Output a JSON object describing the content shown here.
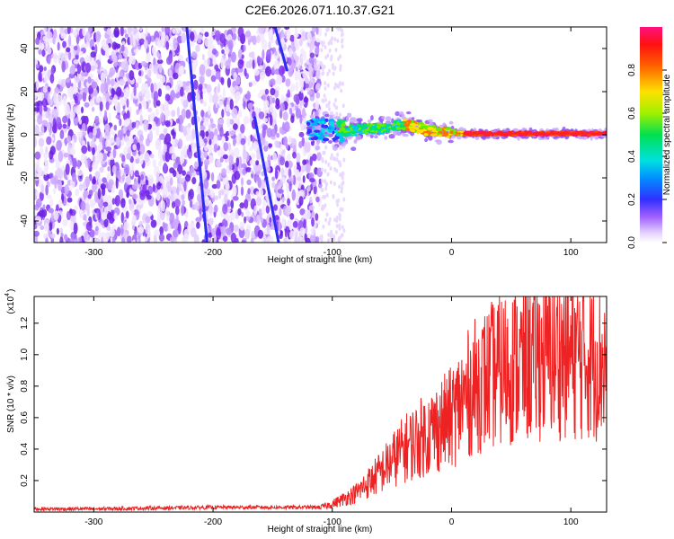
{
  "title": "C2E6.2026.071.10.37.G21",
  "chart_data": [
    {
      "type": "heatmap",
      "xlabel": "Height of straight line (km)",
      "ylabel": "Frequency (Hz)",
      "xlim": [
        -350,
        130
      ],
      "ylim": [
        -50,
        50
      ],
      "xticks": [
        -300,
        -200,
        -100,
        0,
        100
      ],
      "yticks": [
        -40,
        -20,
        0,
        20,
        40
      ],
      "noise_region_x": [
        -350,
        -110
      ],
      "signal_band": {
        "x": [
          -120,
          -100,
          -80,
          -60,
          -40,
          -20,
          0,
          20,
          60,
          100,
          130
        ],
        "frequency": [
          3,
          2,
          2,
          3,
          5,
          2,
          1,
          0.5,
          0.5,
          0.5,
          0.5
        ]
      },
      "streaks": [
        {
          "x": [
            -222,
            -205
          ],
          "frequency": [
            50,
            -50
          ]
        },
        {
          "x": [
            -165,
            -145
          ],
          "frequency": [
            8,
            -50
          ]
        },
        {
          "x": [
            -148,
            -138
          ],
          "frequency": [
            50,
            30
          ]
        }
      ],
      "colorbar": {
        "label": "Normalized spectral amplitude",
        "range": [
          0.0,
          1.0
        ],
        "ticks": [
          "0.0",
          "0.2",
          "0.4",
          "0.6",
          "0.8"
        ]
      }
    },
    {
      "type": "line",
      "xlabel": "Height of straight line (km)",
      "ylabel": "SNR (10 * v/v)",
      "scale_label": "(x10",
      "scale_exp": "4",
      "xlim": [
        -350,
        130
      ],
      "ylim": [
        0.0,
        1.37
      ],
      "xticks": [
        -300,
        -200,
        -100,
        0,
        100
      ],
      "yticks": [
        "0.2",
        "0.4",
        "0.6",
        "0.8",
        "1.0",
        "1.2"
      ],
      "series": [
        {
          "name": "SNR",
          "color": "#ee2222",
          "x": [
            -350,
            -300,
            -250,
            -200,
            -150,
            -110,
            -100,
            -80,
            -60,
            -40,
            -20,
            0,
            10,
            20,
            40,
            60,
            80,
            100,
            120,
            130
          ],
          "y": [
            0.02,
            0.02,
            0.025,
            0.03,
            0.03,
            0.03,
            0.05,
            0.12,
            0.25,
            0.4,
            0.5,
            0.6,
            0.72,
            0.8,
            0.9,
            0.95,
            1.0,
            1.0,
            0.98,
            0.95
          ]
        }
      ]
    }
  ]
}
